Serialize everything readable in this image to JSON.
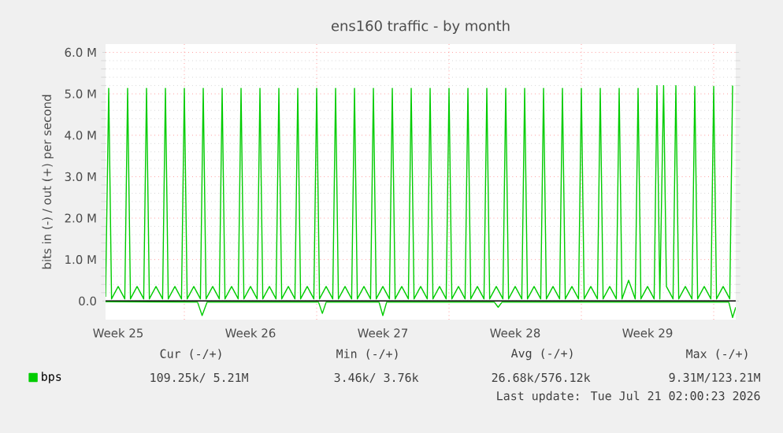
{
  "chart_data": {
    "type": "line",
    "title": "ens160 traffic - by month",
    "ylabel": "bits in (-) / out (+) per second",
    "series": [
      {
        "name": "bps",
        "color": "#00cc00",
        "x": [
          "2026-06-17T20:00",
          "2026-06-18T00:00",
          "2026-06-18T03:36",
          "2026-06-18T12:00",
          "2026-06-18T20:24",
          "2026-06-19T00:00",
          "2026-06-19T03:36",
          "2026-06-19T12:00",
          "2026-06-19T20:24",
          "2026-06-20T00:00",
          "2026-06-20T03:36",
          "2026-06-20T12:00",
          "2026-06-20T20:24",
          "2026-06-21T00:00",
          "2026-06-21T03:36",
          "2026-06-21T12:00",
          "2026-06-21T20:24",
          "2026-06-22T00:00",
          "2026-06-22T03:36",
          "2026-06-22T12:00",
          "2026-06-22T20:24",
          "2026-06-23T00:00",
          "2026-06-23T03:36",
          "2026-06-23T12:00",
          "2026-06-23T20:24",
          "2026-06-24T00:00",
          "2026-06-24T03:36",
          "2026-06-24T12:00",
          "2026-06-24T20:24",
          "2026-06-25T00:00",
          "2026-06-25T03:36",
          "2026-06-25T12:00",
          "2026-06-25T20:24",
          "2026-06-26T00:00",
          "2026-06-26T03:36",
          "2026-06-26T12:00",
          "2026-06-26T20:24",
          "2026-06-27T00:00",
          "2026-06-27T03:36",
          "2026-06-27T12:00",
          "2026-06-27T20:24",
          "2026-06-28T00:00",
          "2026-06-28T03:36",
          "2026-06-28T12:00",
          "2026-06-28T20:24",
          "2026-06-29T00:00",
          "2026-06-29T03:36",
          "2026-06-29T12:00",
          "2026-06-29T20:24",
          "2026-06-30T00:00",
          "2026-06-30T03:36",
          "2026-06-30T12:00",
          "2026-06-30T20:24",
          "2026-07-01T00:00",
          "2026-07-01T03:36",
          "2026-07-01T12:00",
          "2026-07-01T20:24",
          "2026-07-02T00:00",
          "2026-07-02T03:36",
          "2026-07-02T12:00",
          "2026-07-02T20:24",
          "2026-07-03T00:00",
          "2026-07-03T03:36",
          "2026-07-03T12:00",
          "2026-07-03T20:24",
          "2026-07-04T00:00",
          "2026-07-04T03:36",
          "2026-07-04T12:00",
          "2026-07-04T20:24",
          "2026-07-05T00:00",
          "2026-07-05T03:36",
          "2026-07-05T12:00",
          "2026-07-05T20:24",
          "2026-07-06T00:00",
          "2026-07-06T03:36",
          "2026-07-06T12:00",
          "2026-07-06T20:24",
          "2026-07-07T00:00",
          "2026-07-07T03:36",
          "2026-07-07T12:00",
          "2026-07-07T20:24",
          "2026-07-08T00:00",
          "2026-07-08T03:36",
          "2026-07-08T12:00",
          "2026-07-08T20:24",
          "2026-07-09T00:00",
          "2026-07-09T03:36",
          "2026-07-09T12:00",
          "2026-07-09T20:24",
          "2026-07-10T00:00",
          "2026-07-10T03:36",
          "2026-07-10T12:00",
          "2026-07-10T20:24",
          "2026-07-11T00:00",
          "2026-07-11T03:36",
          "2026-07-11T12:00",
          "2026-07-11T20:24",
          "2026-07-12T00:00",
          "2026-07-12T03:36",
          "2026-07-12T12:00",
          "2026-07-12T20:24",
          "2026-07-13T00:00",
          "2026-07-13T03:36",
          "2026-07-13T12:00",
          "2026-07-13T20:24",
          "2026-07-14T00:00",
          "2026-07-14T03:36",
          "2026-07-14T12:00",
          "2026-07-14T20:24",
          "2026-07-15T00:00",
          "2026-07-15T03:36",
          "2026-07-15T12:00",
          "2026-07-15T20:24",
          "2026-07-16T00:00",
          "2026-07-16T03:36",
          "2026-07-16T12:00",
          "2026-07-16T20:24",
          "2026-07-17T00:00",
          "2026-07-17T03:36",
          "2026-07-17T08:24",
          "2026-07-17T12:00",
          "2026-07-17T20:24",
          "2026-07-18T00:00",
          "2026-07-18T03:36",
          "2026-07-18T12:00",
          "2026-07-18T20:24",
          "2026-07-19T00:00",
          "2026-07-19T03:36",
          "2026-07-19T12:00",
          "2026-07-19T20:24",
          "2026-07-20T00:00",
          "2026-07-20T03:36",
          "2026-07-20T12:00",
          "2026-07-20T20:24",
          "2026-07-21T00:00"
        ],
        "values": [
          0.1,
          5.13,
          0.05,
          0.35,
          0.05,
          5.13,
          0.05,
          0.35,
          0.05,
          5.13,
          0.05,
          0.35,
          0.05,
          5.13,
          0.05,
          0.35,
          0.05,
          5.13,
          0.05,
          0.35,
          0.05,
          5.13,
          0.05,
          0.35,
          0.05,
          5.13,
          0.05,
          0.35,
          0.05,
          5.13,
          0.05,
          0.35,
          0.05,
          5.13,
          0.05,
          0.35,
          0.05,
          5.13,
          0.05,
          0.35,
          0.05,
          5.13,
          0.05,
          0.35,
          0.05,
          5.13,
          0.05,
          0.35,
          0.05,
          5.13,
          0.05,
          0.35,
          0.05,
          5.13,
          0.05,
          0.35,
          0.05,
          5.13,
          0.05,
          0.35,
          0.05,
          5.13,
          0.05,
          0.35,
          0.05,
          5.13,
          0.05,
          0.35,
          0.05,
          5.13,
          0.05,
          0.35,
          0.05,
          5.13,
          0.05,
          0.35,
          0.05,
          5.13,
          0.05,
          0.35,
          0.05,
          5.13,
          0.05,
          0.35,
          0.05,
          5.13,
          0.05,
          0.35,
          0.05,
          5.13,
          0.05,
          0.35,
          0.05,
          5.13,
          0.05,
          0.35,
          0.05,
          5.13,
          0.05,
          0.35,
          0.05,
          5.13,
          0.05,
          0.35,
          0.05,
          5.13,
          0.05,
          0.35,
          0.05,
          5.13,
          0.05,
          0.5,
          0.05,
          5.13,
          0.05,
          0.35,
          0.05,
          5.2,
          0.05,
          5.2,
          0.35,
          0.05,
          5.2,
          0.05,
          0.35,
          0.05,
          5.18,
          0.05,
          0.35,
          0.05,
          5.18,
          0.05,
          0.35,
          0.05,
          5.2
        ]
      },
      {
        "color": "#00cc00",
        "x": [
          "2026-06-17T20:00",
          "2026-06-22T16:48",
          "2026-06-22T22:34",
          "2026-06-23T04:48",
          "2026-06-29T02:24",
          "2026-06-29T07:12",
          "2026-06-29T12:00",
          "2026-07-02T07:12",
          "2026-07-02T12:00",
          "2026-07-02T16:48",
          "2026-07-08T09:36",
          "2026-07-08T14:24",
          "2026-07-08T19:12",
          "2026-07-20T19:12",
          "2026-07-21T00:00",
          "2026-07-21T04:00"
        ],
        "values": [
          -0.02,
          -0.03,
          -0.35,
          -0.03,
          -0.03,
          -0.3,
          -0.03,
          -0.03,
          -0.35,
          -0.03,
          -0.03,
          -0.15,
          -0.03,
          -0.03,
          -0.4,
          -0.15
        ]
      }
    ],
    "xlim": [
      "2026-06-17T20:00",
      "2026-07-21T04:00"
    ],
    "ylim": [
      -0.45,
      6.2
    ],
    "xticks": [
      {
        "value": "2026-06-18T12:00",
        "label": "Week 25"
      },
      {
        "value": "2026-06-25T12:00",
        "label": "Week 26"
      },
      {
        "value": "2026-07-02T12:00",
        "label": "Week 27"
      },
      {
        "value": "2026-07-09T12:00",
        "label": "Week 28"
      },
      {
        "value": "2026-07-16T12:00",
        "label": "Week 29"
      },
      {
        "value": "2026-06-22",
        "label": null
      },
      {
        "value": "2026-06-29",
        "label": null
      },
      {
        "value": "2026-07-06",
        "label": null
      },
      {
        "value": "2026-07-13",
        "label": null
      },
      {
        "value": "2026-07-20",
        "label": null
      }
    ],
    "yticks": [
      {
        "value": 0,
        "label": "0.0"
      },
      {
        "value": 1,
        "label": "1.0 M"
      },
      {
        "value": 2,
        "label": "2.0 M"
      },
      {
        "value": 3,
        "label": "3.0 M"
      },
      {
        "value": 4,
        "label": "4.0 M"
      },
      {
        "value": 5,
        "label": "5.0 M"
      },
      {
        "value": 6,
        "label": "6.0 M"
      }
    ],
    "grid": true,
    "legend": "bottom",
    "annotations": [
      "Cur (-/+)",
      "Min (-/+)",
      "Avg (-/+)",
      "Max (-/+)",
      "109.25k/ 5.21M",
      "3.46k/ 3.76k",
      "26.68k/576.12k",
      "9.31M/123.21M",
      "Last update: Tue Jul 21 02:00:23 2026"
    ]
  }
}
